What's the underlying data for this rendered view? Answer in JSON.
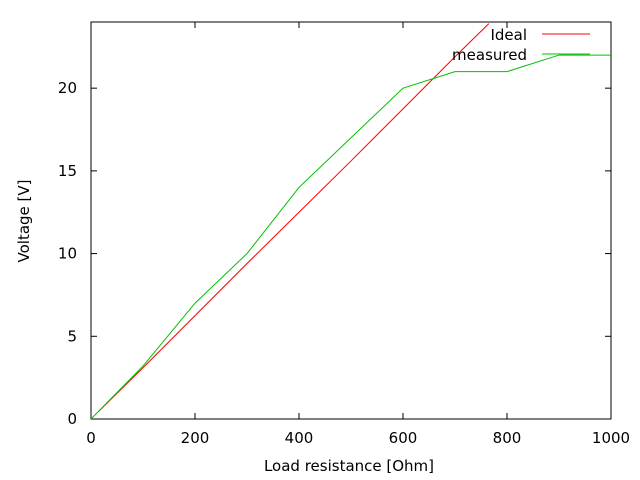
{
  "chart_data": {
    "type": "line",
    "title": "",
    "xlabel": "Load resistance [Ohm]",
    "ylabel": "Voltage [V]",
    "xlim": [
      0,
      1000
    ],
    "ylim": [
      0,
      24
    ],
    "xticks": [
      0,
      200,
      400,
      600,
      800,
      1000
    ],
    "yticks": [
      0,
      5,
      10,
      15,
      20
    ],
    "grid": false,
    "legend": "top-right",
    "series": [
      {
        "name": "Ideal",
        "color": "#ff0000",
        "x": [
          15,
          100,
          200,
          300,
          400,
          500,
          600,
          700,
          765
        ],
        "y": [
          0.47,
          3.1,
          6.25,
          9.4,
          12.5,
          15.6,
          18.75,
          21.9,
          23.9
        ]
      },
      {
        "name": "measured",
        "color": "#00c000",
        "x": [
          0,
          100,
          200,
          300,
          400,
          500,
          600,
          700,
          800,
          900,
          1000
        ],
        "y": [
          0,
          3.2,
          7,
          10,
          14,
          17,
          20,
          21,
          21,
          22,
          22
        ]
      }
    ]
  }
}
